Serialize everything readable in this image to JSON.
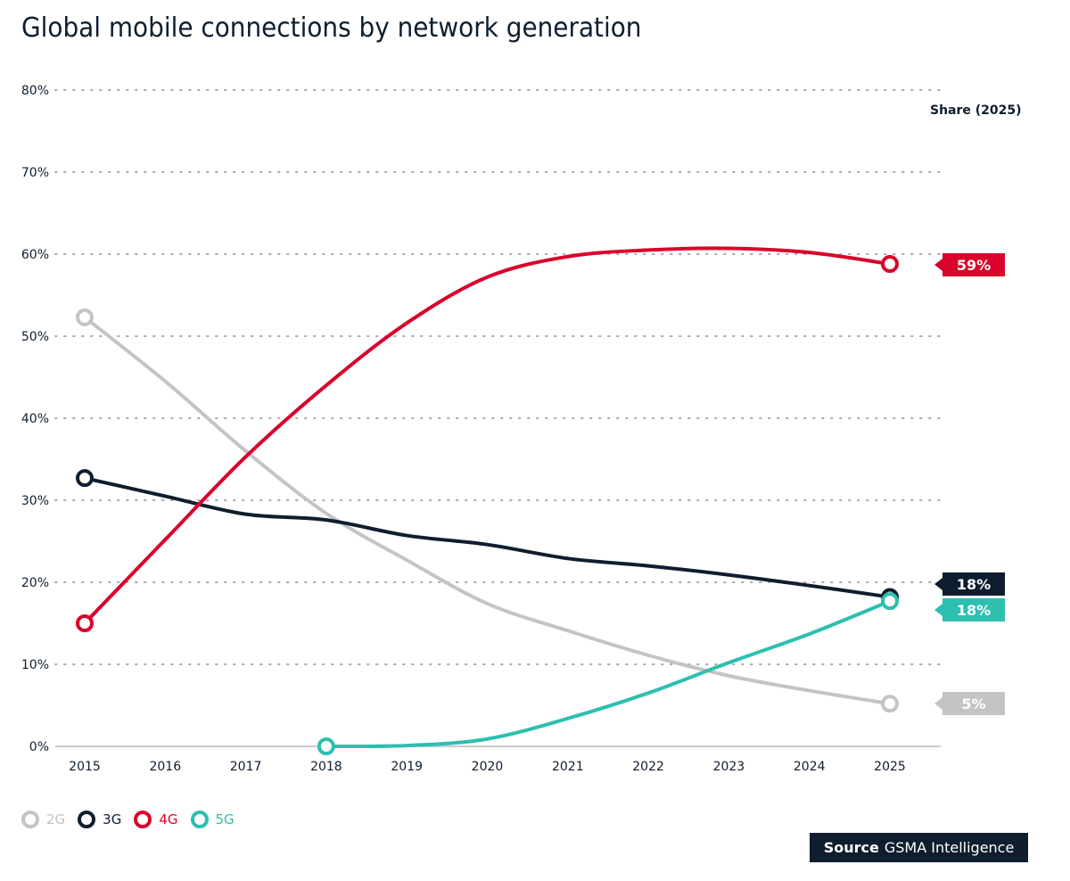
{
  "chart_data": {
    "type": "line",
    "title": "Global mobile connections by network generation",
    "x": [
      2015,
      2016,
      2017,
      2018,
      2019,
      2020,
      2021,
      2022,
      2023,
      2024,
      2025
    ],
    "xtick_labels": [
      "2015",
      "2016",
      "2017",
      "2018",
      "2019",
      "2020",
      "2021",
      "2022",
      "2023",
      "2024",
      "2025"
    ],
    "ytick_labels": [
      "0%",
      "10%",
      "20%",
      "30%",
      "40%",
      "50%",
      "60%",
      "70%",
      "80%"
    ],
    "ylim": [
      0,
      80
    ],
    "yunit": "%",
    "grid": "horizontal dotted",
    "legend_position": "bottom-left",
    "end_label_header": "Share (2025)",
    "series": [
      {
        "name": "2G",
        "color": "#c4c4c4",
        "values": [
          52.3,
          44.5,
          36,
          28.4,
          22.7,
          17.4,
          14.1,
          11.1,
          8.6,
          6.8,
          5.2
        ],
        "end_label": "5%"
      },
      {
        "name": "3G",
        "color": "#0f1e2e",
        "values": [
          32.7,
          30.5,
          28.3,
          27.6,
          25.7,
          24.6,
          22.9,
          22.0,
          20.9,
          19.6,
          18.2
        ],
        "end_label": "18%"
      },
      {
        "name": "4G",
        "color": "#d9042b",
        "values": [
          15.0,
          25.2,
          35.3,
          44.0,
          51.6,
          57.2,
          59.7,
          60.5,
          60.7,
          60.2,
          58.8
        ],
        "end_label": "59%"
      },
      {
        "name": "5G",
        "color": "#2dbfb0",
        "values": [
          null,
          null,
          null,
          0,
          0.1,
          0.9,
          3.4,
          6.5,
          10.2,
          13.7,
          17.7
        ],
        "end_label": "18%"
      }
    ]
  },
  "source": {
    "label": "Source",
    "name": "GSMA Intelligence"
  }
}
